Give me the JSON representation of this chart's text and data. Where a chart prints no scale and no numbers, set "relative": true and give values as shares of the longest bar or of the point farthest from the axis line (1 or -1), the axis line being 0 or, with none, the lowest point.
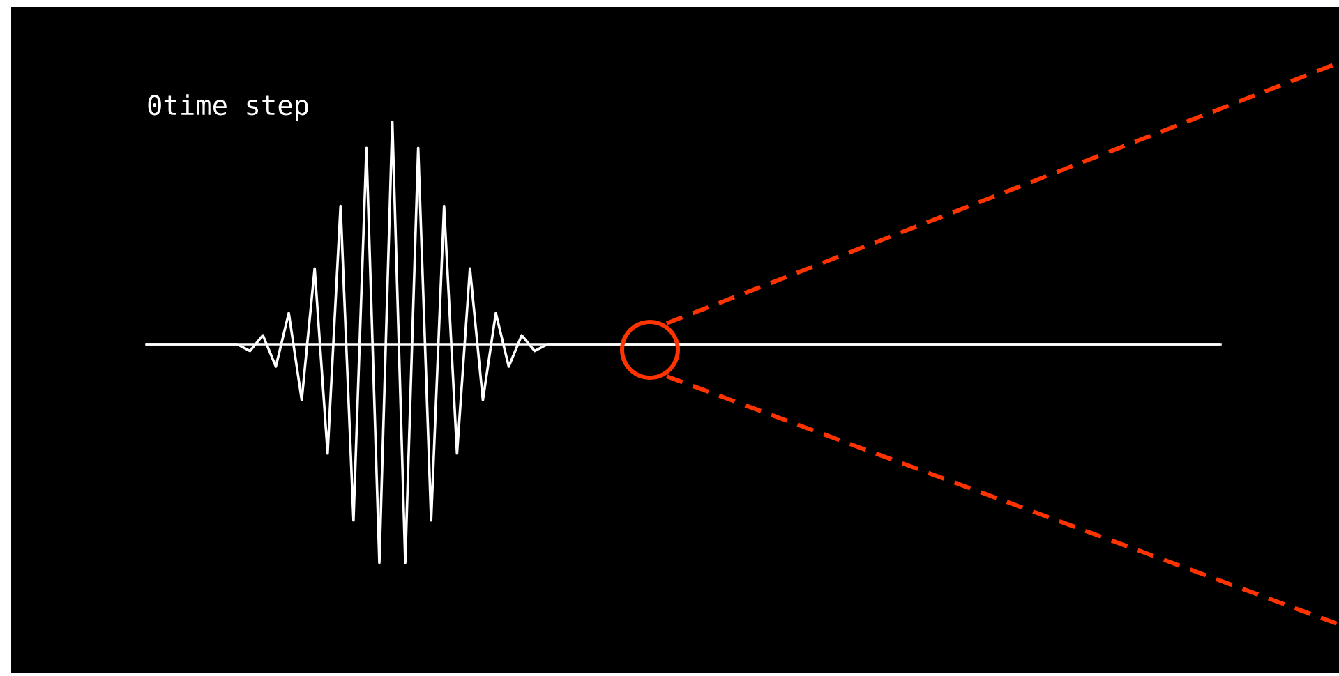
{
  "chart_data": {
    "type": "line",
    "title": "0time step",
    "relative": true,
    "categories": [
      null,
      null,
      null,
      null,
      null,
      null,
      null,
      null,
      null,
      null,
      null,
      null,
      null,
      null,
      null,
      null,
      null,
      null,
      null,
      null,
      null,
      null,
      null,
      null,
      null,
      null,
      null,
      null,
      null,
      null,
      null,
      null,
      null,
      null,
      null,
      null,
      null,
      null,
      null,
      null,
      null,
      null,
      null,
      null,
      null,
      null,
      null,
      null,
      null,
      null,
      null,
      null,
      null,
      null,
      null,
      null,
      null,
      null,
      null,
      null,
      null,
      null,
      null,
      null,
      null,
      null,
      null,
      null,
      null,
      null,
      null,
      null,
      null,
      null,
      null,
      null,
      null,
      null,
      null,
      null,
      null,
      null,
      null,
      null
    ],
    "series": [
      {
        "color": "#ffffff",
        "values": [
          0,
          0,
          0,
          0,
          0,
          0,
          0,
          0,
          -0.03,
          0.04,
          -0.1,
          0.14,
          -0.25,
          0.34,
          -0.49,
          0.62,
          -0.79,
          0.88,
          -0.98,
          1,
          -0.98,
          0.88,
          -0.79,
          0.62,
          -0.49,
          0.34,
          -0.25,
          0.14,
          -0.1,
          0.04,
          -0.03,
          0,
          0,
          0,
          0,
          0,
          0,
          0,
          0,
          0,
          0,
          0,
          0,
          0,
          0,
          0,
          0,
          0,
          0,
          0,
          0,
          0,
          0,
          0,
          0,
          0,
          0,
          0,
          0,
          0,
          0,
          0,
          0,
          0,
          0,
          0,
          0,
          0,
          0,
          0,
          0,
          0,
          0,
          0,
          0,
          0,
          0,
          0,
          0,
          0,
          0,
          0,
          0,
          0
        ]
      }
    ]
  }
}
